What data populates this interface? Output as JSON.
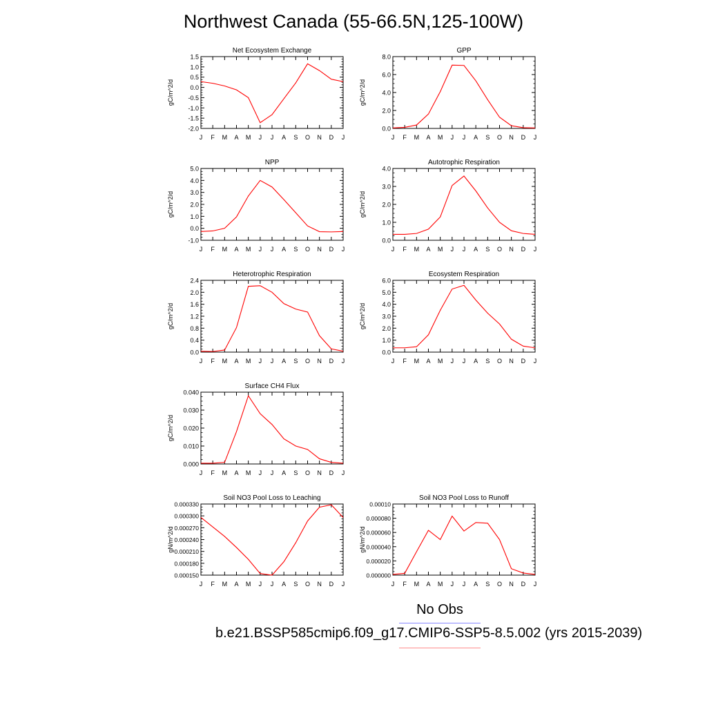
{
  "page_title": "Northwest Canada (55-66.5N,125-100W)",
  "legend": {
    "obs_label": "No Obs",
    "obs_color": "#8888ff",
    "case_label": "b.e21.BSSP585cmip6.f09_g17.CMIP6-SSP5-8.5.002 (yrs 2015-2039)",
    "case_color": "#ff8888"
  },
  "chart_data": [
    {
      "type": "line",
      "title": "Net Ecosystem Exchange",
      "ylabel": "gC/m^2/d",
      "xlabel": "",
      "categories": [
        "J",
        "F",
        "M",
        "A",
        "M",
        "J",
        "J",
        "A",
        "S",
        "O",
        "N",
        "D",
        "J"
      ],
      "ylim": [
        -2.0,
        1.5
      ],
      "yticks": [
        -2.0,
        -1.5,
        -1.0,
        -0.5,
        0.0,
        0.5,
        1.0,
        1.5
      ],
      "ytick_labels": [
        "-2.0",
        "-1.5",
        "-1.0",
        "-0.5",
        "0.0",
        "0.5",
        "1.0",
        "1.5"
      ],
      "grid": false,
      "series": [
        {
          "color": "#ff0000",
          "values": [
            0.28,
            0.2,
            0.07,
            -0.12,
            -0.5,
            -1.72,
            -1.33,
            -0.55,
            0.22,
            1.15,
            0.82,
            0.4,
            0.28
          ]
        }
      ]
    },
    {
      "type": "line",
      "title": "GPP",
      "ylabel": "gC/m^2/d",
      "xlabel": "",
      "categories": [
        "J",
        "F",
        "M",
        "A",
        "M",
        "J",
        "J",
        "A",
        "S",
        "O",
        "N",
        "D",
        "J"
      ],
      "ylim": [
        0.0,
        8.0
      ],
      "yticks": [
        0.0,
        2.0,
        4.0,
        6.0,
        8.0
      ],
      "ytick_labels": [
        "0.0",
        "2.0",
        "4.0",
        "6.0",
        "8.0"
      ],
      "grid": false,
      "series": [
        {
          "color": "#ff0000",
          "values": [
            0.05,
            0.12,
            0.38,
            1.6,
            4.1,
            7.05,
            7.02,
            5.3,
            3.2,
            1.25,
            0.3,
            0.08,
            0.05
          ]
        }
      ]
    },
    {
      "type": "line",
      "title": "NPP",
      "ylabel": "gC/m^2/d",
      "xlabel": "",
      "categories": [
        "J",
        "F",
        "M",
        "A",
        "M",
        "J",
        "J",
        "A",
        "S",
        "O",
        "N",
        "D",
        "J"
      ],
      "ylim": [
        -1.0,
        5.0
      ],
      "yticks": [
        -1.0,
        0.0,
        1.0,
        2.0,
        3.0,
        4.0,
        5.0
      ],
      "ytick_labels": [
        "-1.0",
        "0.0",
        "1.0",
        "2.0",
        "3.0",
        "4.0",
        "5.0"
      ],
      "grid": false,
      "series": [
        {
          "color": "#ff0000",
          "values": [
            -0.27,
            -0.22,
            0.0,
            0.95,
            2.7,
            4.0,
            3.45,
            2.4,
            1.3,
            0.2,
            -0.28,
            -0.3,
            -0.27
          ]
        }
      ]
    },
    {
      "type": "line",
      "title": "Autotrophic Respiration",
      "ylabel": "gC/m^2/d",
      "xlabel": "",
      "categories": [
        "J",
        "F",
        "M",
        "A",
        "M",
        "J",
        "J",
        "A",
        "S",
        "O",
        "N",
        "D",
        "J"
      ],
      "ylim": [
        0.0,
        4.0
      ],
      "yticks": [
        0.0,
        1.0,
        2.0,
        3.0,
        4.0
      ],
      "ytick_labels": [
        "0.0",
        "1.0",
        "2.0",
        "3.0",
        "4.0"
      ],
      "grid": false,
      "series": [
        {
          "color": "#ff0000",
          "values": [
            0.33,
            0.33,
            0.38,
            0.62,
            1.3,
            3.05,
            3.58,
            2.75,
            1.8,
            1.0,
            0.53,
            0.38,
            0.33
          ]
        }
      ]
    },
    {
      "type": "line",
      "title": "Heterotrophic Respiration",
      "ylabel": "gC/m^2/d",
      "xlabel": "",
      "categories": [
        "J",
        "F",
        "M",
        "A",
        "M",
        "J",
        "J",
        "A",
        "S",
        "O",
        "N",
        "D",
        "J"
      ],
      "ylim": [
        0.0,
        2.4
      ],
      "yticks": [
        0.0,
        0.4,
        0.8,
        1.2,
        1.6,
        2.0,
        2.4
      ],
      "ytick_labels": [
        "0.0",
        "0.4",
        "0.8",
        "1.2",
        "1.6",
        "2.0",
        "2.4"
      ],
      "grid": false,
      "series": [
        {
          "color": "#ff0000",
          "values": [
            0.03,
            0.02,
            0.07,
            0.82,
            2.2,
            2.22,
            2.0,
            1.62,
            1.44,
            1.34,
            0.55,
            0.11,
            0.03
          ]
        }
      ]
    },
    {
      "type": "line",
      "title": "Ecosystem Respiration",
      "ylabel": "gC/m^2/d",
      "xlabel": "",
      "categories": [
        "J",
        "F",
        "M",
        "A",
        "M",
        "J",
        "J",
        "A",
        "S",
        "O",
        "N",
        "D",
        "J"
      ],
      "ylim": [
        0.0,
        6.0
      ],
      "yticks": [
        0.0,
        1.0,
        2.0,
        3.0,
        4.0,
        5.0,
        6.0
      ],
      "ytick_labels": [
        "0.0",
        "1.0",
        "2.0",
        "3.0",
        "4.0",
        "5.0",
        "6.0"
      ],
      "grid": false,
      "series": [
        {
          "color": "#ff0000",
          "values": [
            0.36,
            0.36,
            0.45,
            1.45,
            3.5,
            5.27,
            5.58,
            4.35,
            3.25,
            2.35,
            1.08,
            0.5,
            0.36
          ]
        }
      ]
    },
    {
      "type": "line",
      "title": "Surface CH4 Flux",
      "ylabel": "gC/m^2/d",
      "xlabel": "",
      "categories": [
        "J",
        "F",
        "M",
        "A",
        "M",
        "J",
        "J",
        "A",
        "S",
        "O",
        "N",
        "D",
        "J"
      ],
      "ylim": [
        0.0,
        0.04
      ],
      "yticks": [
        0.0,
        0.01,
        0.02,
        0.03,
        0.04
      ],
      "ytick_labels": [
        "0.000",
        "0.010",
        "0.020",
        "0.030",
        "0.040"
      ],
      "grid": false,
      "series": [
        {
          "color": "#ff0000",
          "values": [
            0.0004,
            0.0004,
            0.0009,
            0.018,
            0.038,
            0.028,
            0.022,
            0.014,
            0.01,
            0.0081,
            0.0029,
            0.0009,
            0.0004
          ]
        }
      ]
    },
    {
      "type": "line",
      "title": "Soil NO3 Pool Loss to Leaching",
      "ylabel": "gN/m^2/d",
      "xlabel": "",
      "categories": [
        "J",
        "F",
        "M",
        "A",
        "M",
        "J",
        "J",
        "A",
        "S",
        "O",
        "N",
        "D",
        "J"
      ],
      "ylim": [
        0.00015,
        0.00033
      ],
      "yticks": [
        0.00015,
        0.00018,
        0.00021,
        0.00024,
        0.00027,
        0.0003,
        0.00033
      ],
      "ytick_labels": [
        "0.000150",
        "0.000180",
        "0.000210",
        "0.000240",
        "0.000270",
        "0.000300",
        "0.000330"
      ],
      "grid": false,
      "series": [
        {
          "color": "#ff0000",
          "values": [
            0.000296,
            0.000272,
            0.000248,
            0.00022,
            0.00019,
            0.000154,
            0.00015,
            0.000184,
            0.000232,
            0.000287,
            0.000322,
            0.000328,
            0.000296
          ]
        }
      ]
    },
    {
      "type": "line",
      "title": "Soil NO3 Pool Loss to Runoff",
      "ylabel": "gN/m^2/d",
      "xlabel": "",
      "categories": [
        "J",
        "F",
        "M",
        "A",
        "M",
        "J",
        "J",
        "A",
        "S",
        "O",
        "N",
        "D",
        "J"
      ],
      "ylim": [
        0.0,
        0.0001
      ],
      "yticks": [
        0.0,
        2e-05,
        4e-05,
        6e-05,
        8e-05,
        0.0001
      ],
      "ytick_labels": [
        "0.000000",
        "0.000020",
        "0.000040",
        "0.000060",
        "0.000080",
        "0.00010"
      ],
      "grid": false,
      "series": [
        {
          "color": "#ff0000",
          "values": [
            1e-06,
            2.5e-06,
            3.3e-05,
            6.3e-05,
            5e-05,
            8.3e-05,
            6.2e-05,
            7.4e-05,
            7.3e-05,
            5e-05,
            9e-06,
            3e-06,
            1e-06
          ]
        }
      ]
    }
  ]
}
